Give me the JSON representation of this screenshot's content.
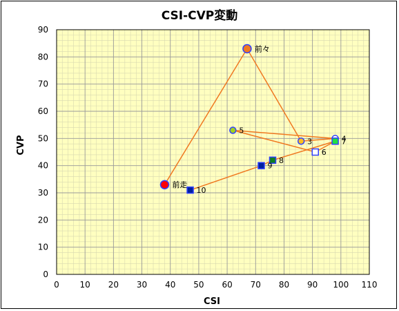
{
  "chart_data": {
    "type": "scatter",
    "title": "CSI-CVP変動",
    "xlabel": "CSI",
    "ylabel": "CVP",
    "xlim": [
      0,
      110
    ],
    "ylim": [
      0,
      90
    ],
    "xticks": [
      0,
      10,
      20,
      30,
      40,
      50,
      60,
      70,
      80,
      90,
      100,
      110
    ],
    "yticks": [
      0,
      10,
      20,
      30,
      40,
      50,
      60,
      70,
      80,
      90
    ],
    "grid": true,
    "minor_grid": true,
    "line_color": "#f07820",
    "plot_background": "#ffffc0",
    "points": [
      {
        "label": "前走",
        "x": 38,
        "y": 33,
        "marker": "circle",
        "size": "large",
        "fill": "#ff0000",
        "stroke": "#3040ff"
      },
      {
        "label": "前々",
        "x": 67,
        "y": 83,
        "marker": "circle",
        "size": "large",
        "fill": "#f07820",
        "stroke": "#3040ff"
      },
      {
        "label": "3",
        "x": 86,
        "y": 49,
        "marker": "circle",
        "size": "small",
        "fill": "#ffc020",
        "stroke": "#3040ff"
      },
      {
        "label": "4",
        "x": 98,
        "y": 50,
        "marker": "circle",
        "size": "small",
        "fill": "#ffffff",
        "stroke": "#3040ff"
      },
      {
        "label": "5",
        "x": 62,
        "y": 53,
        "marker": "circle",
        "size": "small",
        "fill": "#a0d020",
        "stroke": "#3040ff"
      },
      {
        "label": "6",
        "x": 91,
        "y": 45,
        "marker": "square",
        "size": "small",
        "fill": "#ffffff",
        "stroke": "#3040ff"
      },
      {
        "label": "7",
        "x": 98,
        "y": 49,
        "marker": "square",
        "size": "small",
        "fill": "#20e040",
        "stroke": "#3040ff"
      },
      {
        "label": "8",
        "x": 76,
        "y": 42,
        "marker": "square",
        "size": "small",
        "fill": "#108020",
        "stroke": "#3040ff"
      },
      {
        "label": "9",
        "x": 72,
        "y": 40,
        "marker": "square",
        "size": "small",
        "fill": "#0020a0",
        "stroke": "#3040ff"
      },
      {
        "label": "10",
        "x": 47,
        "y": 31,
        "marker": "square",
        "size": "small",
        "fill": "#0020a0",
        "stroke": "#3040ff"
      }
    ]
  }
}
